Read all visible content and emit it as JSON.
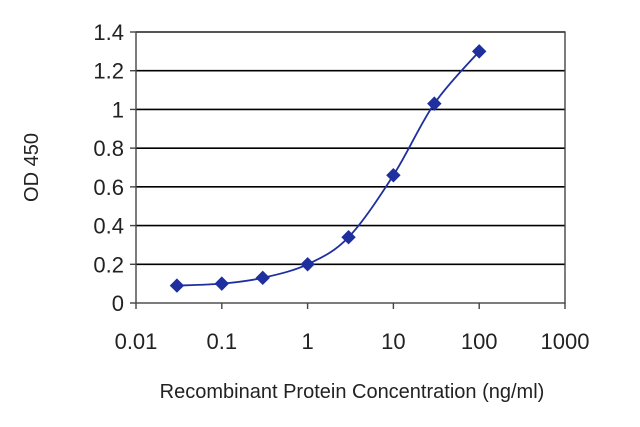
{
  "chart_data": {
    "type": "scatter",
    "title": "",
    "xlabel": "Recombinant Protein Concentration (ng/ml)",
    "ylabel": "OD 450",
    "xscale": "log",
    "xlim": [
      0.01,
      1000
    ],
    "ylim": [
      0,
      1.4
    ],
    "xticks": [
      0.01,
      0.1,
      1,
      10,
      100,
      1000
    ],
    "xtick_labels": [
      "0.01",
      "0.1",
      "1",
      "10",
      "100",
      "1000"
    ],
    "yticks": [
      0,
      0.2,
      0.4,
      0.6,
      0.8,
      1,
      1.2,
      1.4
    ],
    "ytick_labels": [
      "0",
      "0.2",
      "0.4",
      "0.6",
      "0.8",
      "1",
      "1.2",
      "1.4"
    ],
    "grid": "horizontal",
    "marker": "diamond",
    "line": "smooth",
    "series": [
      {
        "x": [
          0.03,
          0.1,
          0.3,
          1,
          3,
          10,
          30,
          100
        ],
        "y": [
          0.09,
          0.1,
          0.13,
          0.2,
          0.34,
          0.66,
          1.03,
          1.3
        ]
      }
    ]
  },
  "colors": {
    "series": "#1f2f9e",
    "grid": "#000000",
    "frame": "#444444",
    "text": "#222222"
  }
}
